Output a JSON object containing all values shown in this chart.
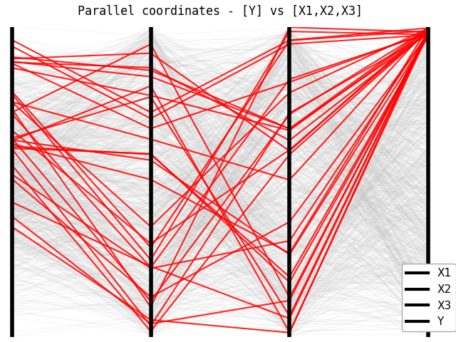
{
  "title": "Parallel coordinates - [Y] vs [X1,X2,X3]",
  "axes_order": [
    "Y",
    "X1",
    "X2",
    "X3"
  ],
  "n_total": 1000,
  "n_highlighted": 30,
  "gray_color": "#c0c0c0",
  "red_color": "#ff0000",
  "axis_color": "#000000",
  "background_color": "#c8c8c8",
  "gray_alpha": 0.25,
  "red_alpha": 0.85,
  "gray_lw": 0.4,
  "red_lw": 1.5,
  "axis_lw": 4.0,
  "figsize": [
    6.4,
    4.8
  ],
  "dpi": 100,
  "legend_items": [
    "X1",
    "X2",
    "X3",
    "Y"
  ],
  "legend_fontsize": 11
}
